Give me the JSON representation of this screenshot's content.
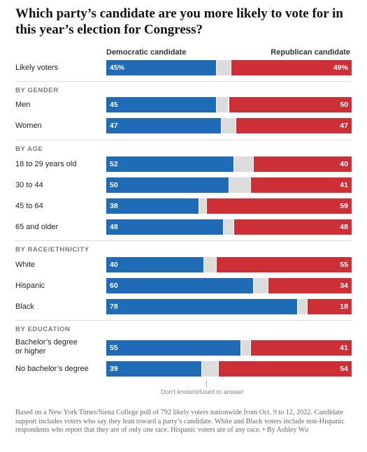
{
  "title": "Which party’s candidate are you more likely to vote for in this year’s election for Congress?",
  "columns": {
    "democratic": "Democratic candidate",
    "republican": "Republican candidate"
  },
  "note": "Don’t know/refused to answer",
  "footnote": "Based on a New York Times/Siena College poll of 792 likely voters nationwide from Oct. 9 to 12, 2022. Candidate support includes voters who say they lean toward a party’s candidate. White and Black voters include non-Hispanic respondents who report that they are of only one race. Hispanic voters are of any race.  •  By Ashley Wu",
  "colors": {
    "democratic": "#1f6bb5",
    "republican": "#cc2f35",
    "dont_know": "#dcdcdc"
  },
  "chart_data": {
    "type": "bar",
    "series": [
      {
        "name": "Democratic candidate"
      },
      {
        "name": "Republican candidate"
      }
    ],
    "groups": [
      {
        "label": "",
        "rows": [
          {
            "label": "Likely voters",
            "dem": 45,
            "rep": 49,
            "dem_label": "45%",
            "rep_label": "49%"
          }
        ]
      },
      {
        "label": "BY GENDER",
        "rows": [
          {
            "label": "Men",
            "dem": 45,
            "rep": 50,
            "dem_label": "45",
            "rep_label": "50"
          },
          {
            "label": "Women",
            "dem": 47,
            "rep": 47,
            "dem_label": "47",
            "rep_label": "47"
          }
        ]
      },
      {
        "label": "BY AGE",
        "rows": [
          {
            "label": "18 to 29 years old",
            "dem": 52,
            "rep": 40,
            "dem_label": "52",
            "rep_label": "40"
          },
          {
            "label": "30 to 44",
            "dem": 50,
            "rep": 41,
            "dem_label": "50",
            "rep_label": "41"
          },
          {
            "label": "45 to 64",
            "dem": 38,
            "rep": 59,
            "dem_label": "38",
            "rep_label": "59"
          },
          {
            "label": "65 and older",
            "dem": 48,
            "rep": 48,
            "dem_label": "48",
            "rep_label": "48"
          }
        ]
      },
      {
        "label": "BY RACE/ETHNICITY",
        "rows": [
          {
            "label": "White",
            "dem": 40,
            "rep": 55,
            "dem_label": "40",
            "rep_label": "55"
          },
          {
            "label": "Hispanic",
            "dem": 60,
            "rep": 34,
            "dem_label": "60",
            "rep_label": "34"
          },
          {
            "label": "Black",
            "dem": 78,
            "rep": 18,
            "dem_label": "78",
            "rep_label": "18"
          }
        ]
      },
      {
        "label": "BY EDUCATION",
        "rows": [
          {
            "label": "Bachelor’s degree or higher",
            "dem": 55,
            "rep": 41,
            "dem_label": "55",
            "rep_label": "41"
          },
          {
            "label": "No bachelor’s degree",
            "dem": 39,
            "rep": 54,
            "dem_label": "39",
            "rep_label": "54"
          }
        ]
      }
    ]
  }
}
